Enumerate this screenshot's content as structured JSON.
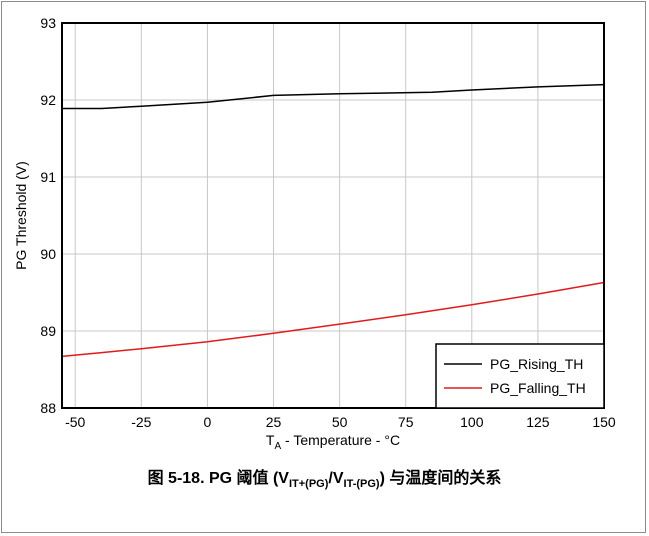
{
  "chart_data": {
    "type": "line",
    "xlabel_main": "T",
    "xlabel_sub": "A",
    "xlabel_rest": " - Temperature - °C",
    "ylabel": "PG Threshold (V)",
    "xlim": [
      -55,
      150
    ],
    "ylim": [
      88,
      93
    ],
    "xticks": [
      -50,
      -25,
      0,
      25,
      50,
      75,
      100,
      125,
      150
    ],
    "yticks": [
      88,
      89,
      90,
      91,
      92,
      93
    ],
    "legend_position": "bottom-right",
    "series": [
      {
        "name": "PG_Rising_TH",
        "color": "#000000",
        "x": [
          -55,
          -40,
          -25,
          0,
          25,
          50,
          85,
          100,
          125,
          150
        ],
        "y": [
          91.89,
          91.89,
          91.92,
          91.97,
          92.06,
          92.08,
          92.1,
          92.13,
          92.17,
          92.2
        ]
      },
      {
        "name": "PG_Falling_TH",
        "color": "#e31a1c",
        "x": [
          -55,
          -40,
          -25,
          0,
          25,
          50,
          75,
          100,
          125,
          150
        ],
        "y": [
          88.67,
          88.72,
          88.77,
          88.86,
          88.97,
          89.09,
          89.21,
          89.34,
          89.48,
          89.63
        ]
      }
    ]
  },
  "caption": {
    "prefix": "图 5-18. PG 阈值 (V",
    "sub1": "IT+(PG)",
    "mid": "/V",
    "sub2": "IT-(PG)",
    "suffix": ") 与温度间的关系"
  }
}
